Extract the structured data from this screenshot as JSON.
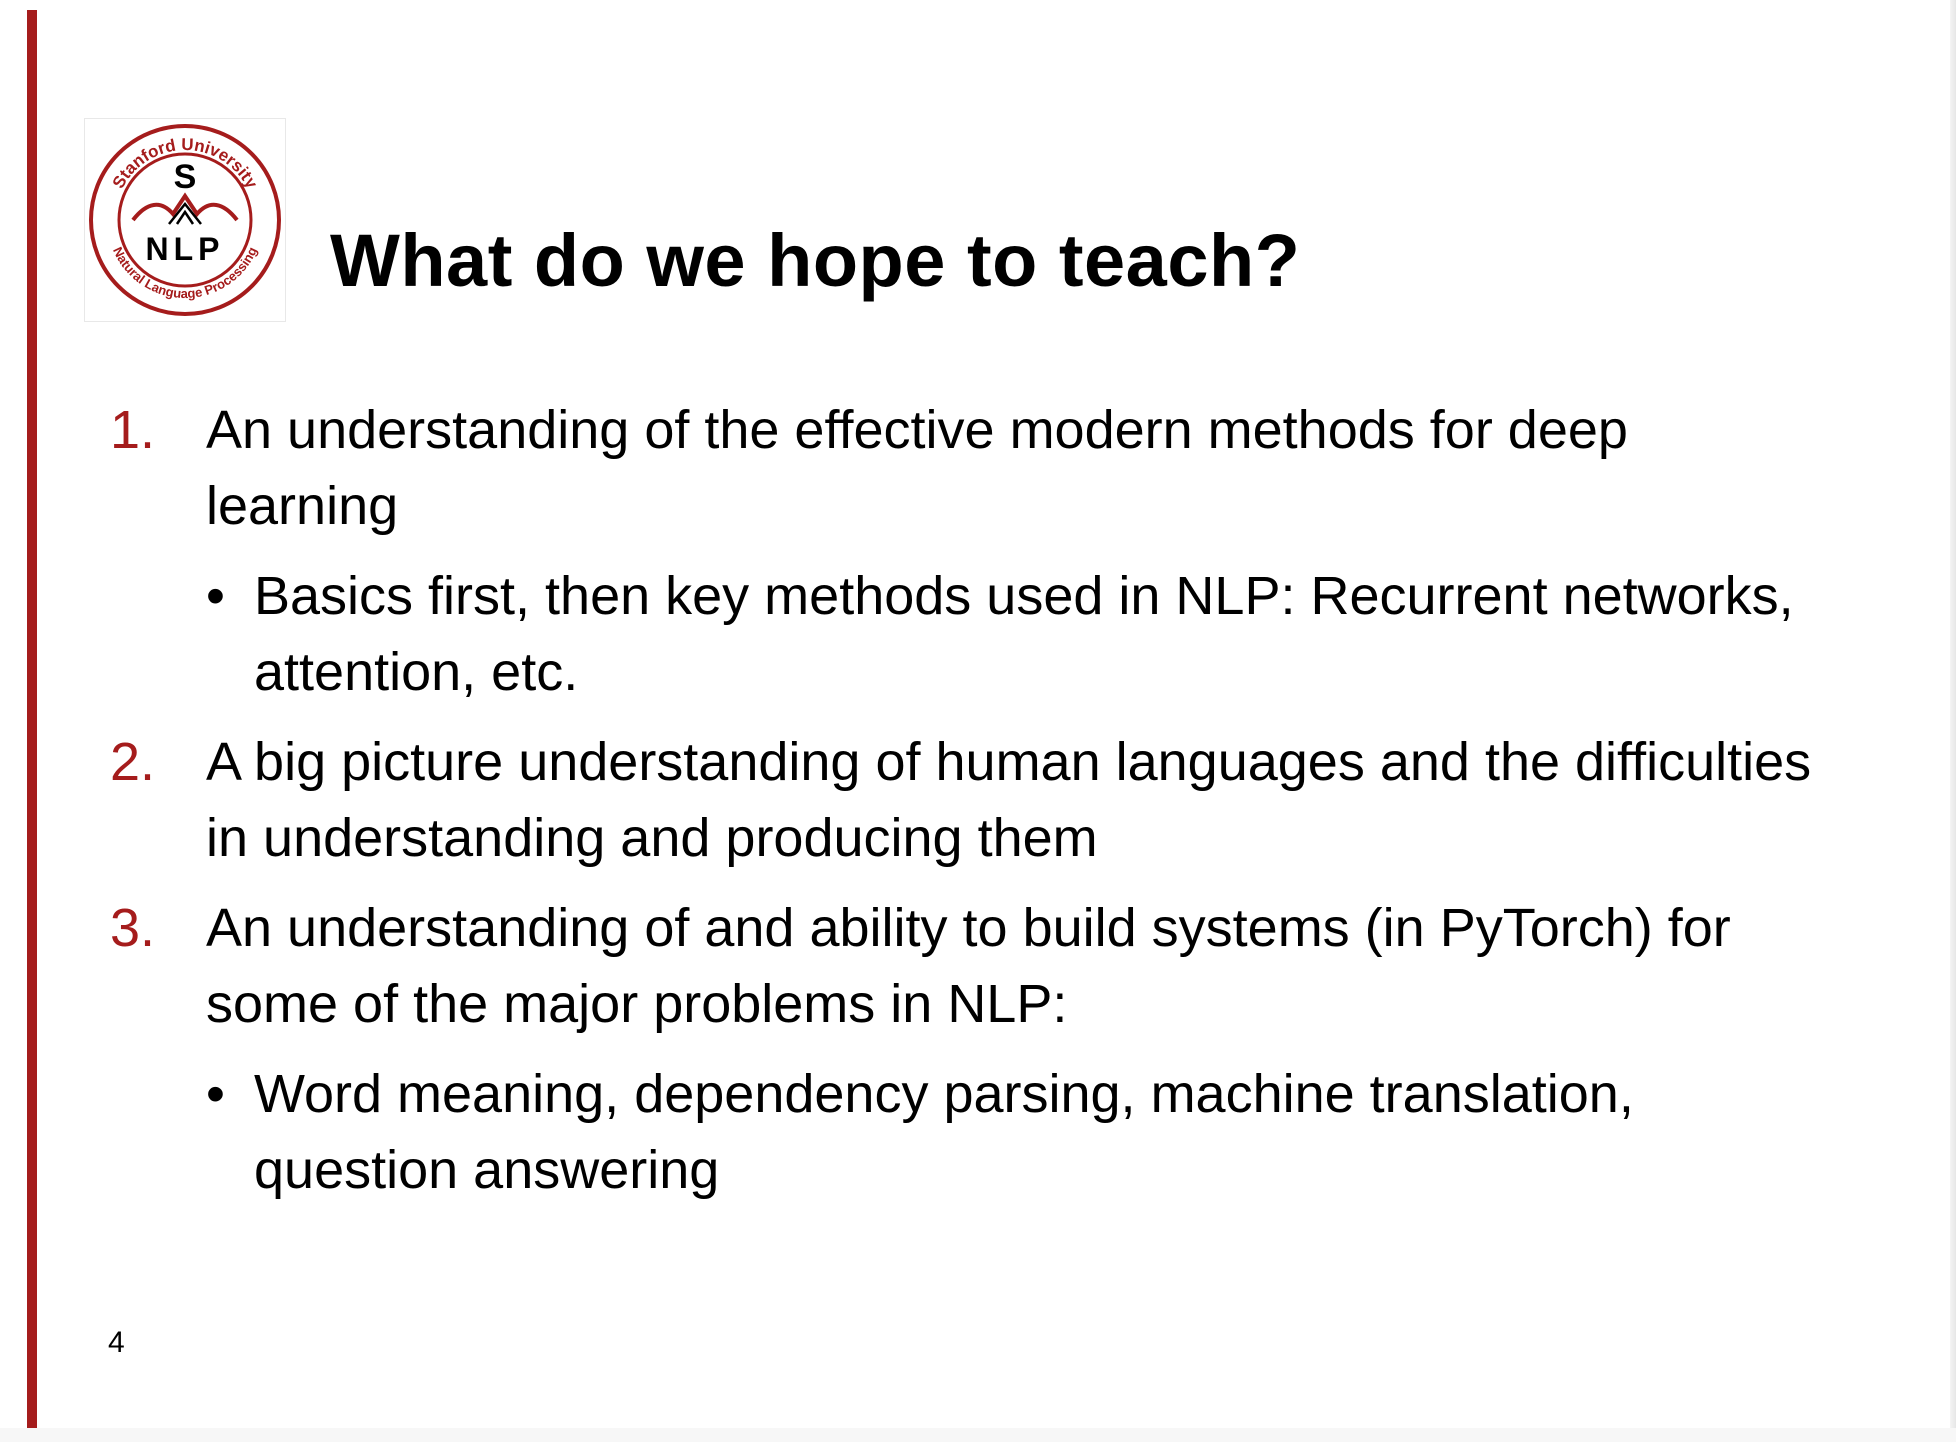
{
  "slide": {
    "title": "What do we hope to teach?",
    "page_number": "4",
    "accent_color": "#a51c1c"
  },
  "logo": {
    "top_text": "Stanford University",
    "bottom_text": "Natural Language Processing",
    "letter": "S",
    "acronym": "NLP"
  },
  "items": [
    {
      "number": "1.",
      "text": "An understanding of the effective modern methods for deep learning",
      "sub": "Basics first, then key methods used in NLP: Recurrent networks, attention, etc."
    },
    {
      "number": "2.",
      "text": "A big picture understanding of human languages and the difficulties in understanding and producing them"
    },
    {
      "number": "3.",
      "text": "An understanding of and ability to build systems (in PyTorch) for some of the major problems in NLP:",
      "sub": "Word meaning, dependency parsing, machine translation, question answering"
    }
  ],
  "bullet_glyph": "•"
}
